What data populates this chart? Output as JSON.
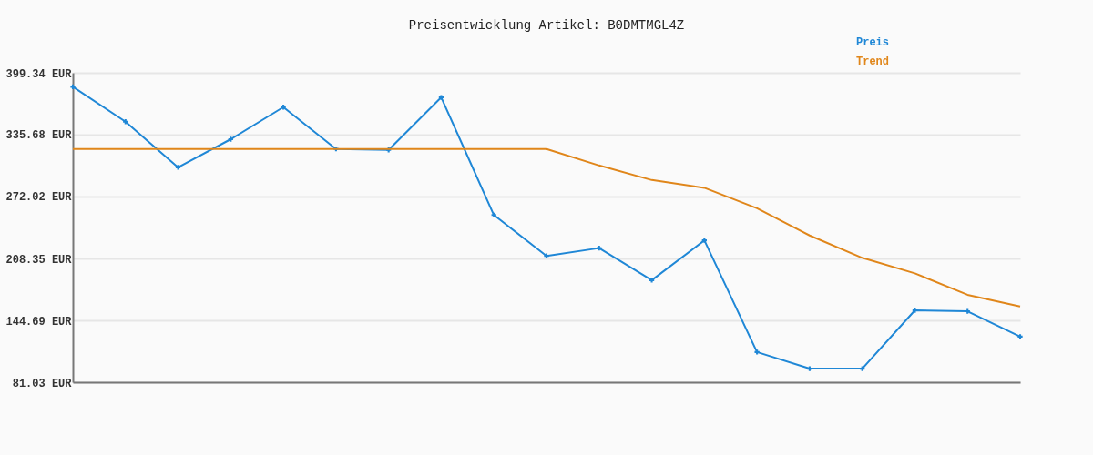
{
  "chart_data": {
    "type": "line",
    "title": "Preisentwicklung Artikel: B0DMTMGL4Z",
    "categories": [
      null,
      null,
      null,
      null,
      null,
      null,
      null,
      null,
      null,
      null,
      null,
      null,
      null,
      null,
      null,
      null,
      null,
      null,
      null
    ],
    "series": [
      {
        "name": "Preis",
        "color": "#1f87d6",
        "values": [
          385,
          349,
          302,
          331,
          364,
          321,
          320,
          374,
          253,
          211,
          219,
          186,
          227,
          112,
          95,
          95,
          155,
          154,
          128
        ]
      },
      {
        "name": "Trend",
        "color": "#e0861a",
        "marker": "none",
        "values": [
          321,
          321,
          321,
          321,
          321,
          321,
          321,
          321,
          321,
          321,
          304,
          289,
          281,
          260,
          232,
          209,
          193,
          171,
          159
        ]
      }
    ],
    "ylim": [
      81.03,
      399.34
    ],
    "yticks": [
      {
        "value": 81.03,
        "label": "81.03 EUR"
      },
      {
        "value": 144.69,
        "label": "144.69 EUR"
      },
      {
        "value": 208.35,
        "label": "208.35 EUR"
      },
      {
        "value": 272.02,
        "label": "272.02 EUR"
      },
      {
        "value": 335.68,
        "label": "335.68 EUR"
      },
      {
        "value": 399.34,
        "label": "399.34 EUR"
      }
    ],
    "grid": "y",
    "legend": "top right",
    "tick_labels": "y",
    "marker": "cross",
    "line_style": "solid"
  }
}
